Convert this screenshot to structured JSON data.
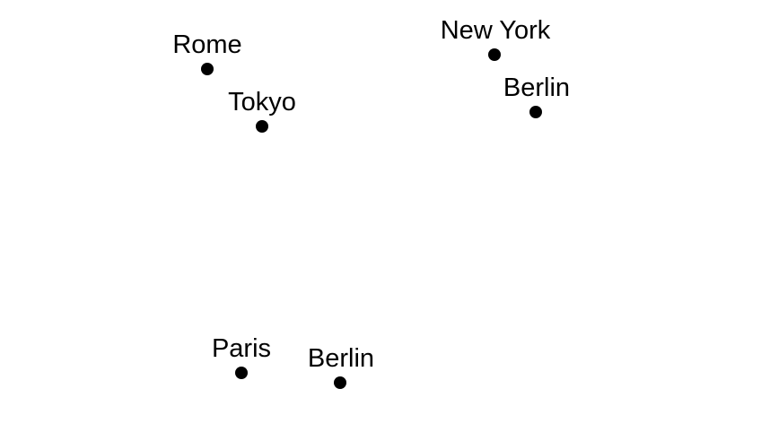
{
  "places": [
    {
      "label": "Rome"
    },
    {
      "label": "Tokyo"
    },
    {
      "label": "New York"
    },
    {
      "label": "Berlin"
    },
    {
      "label": "Paris"
    },
    {
      "label": "Berlin"
    }
  ],
  "colors": {
    "dot": "#000000",
    "text": "#000000",
    "background": "#ffffff"
  }
}
